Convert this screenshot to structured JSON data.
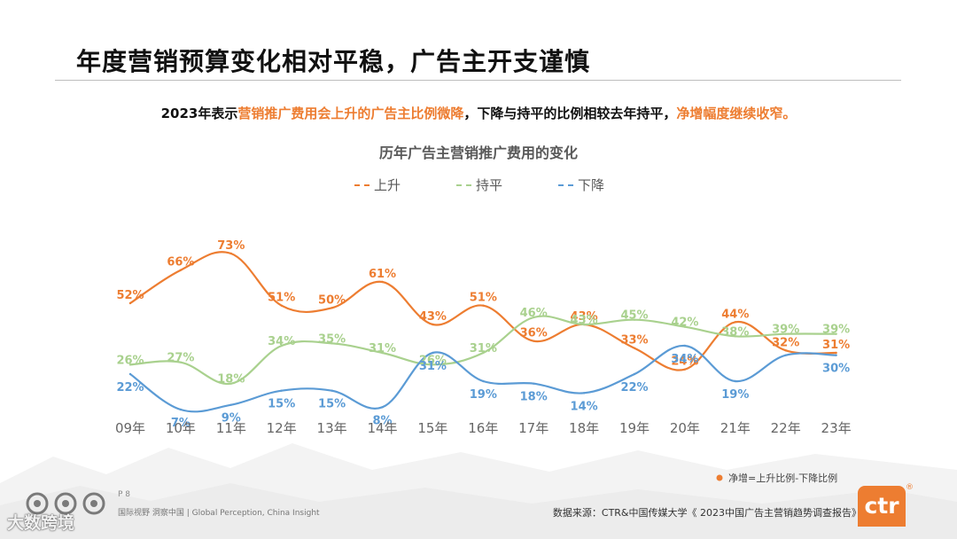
{
  "header": {
    "title": "年度营销预算变化相对平稳，广告主开支谨慎"
  },
  "subtitle": {
    "part1": "2023年表示",
    "highlight1": "营销推广费用会上升的广告主比例微降",
    "part2": "，下降与持平的比例相较去年持平，",
    "highlight2": "净增幅度继续收窄。"
  },
  "chart_data": {
    "type": "line",
    "title": "历年广告主营销推广费用的变化",
    "categories": [
      "09年",
      "10年",
      "11年",
      "12年",
      "13年",
      "14年",
      "15年",
      "16年",
      "17年",
      "18年",
      "19年",
      "20年",
      "21年",
      "22年",
      "23年"
    ],
    "series": [
      {
        "name": "上升",
        "color": "#ED7D31",
        "values": [
          52,
          66,
          73,
          51,
          50,
          61,
          43,
          51,
          36,
          43,
          33,
          24,
          44,
          32,
          31
        ]
      },
      {
        "name": "持平",
        "color": "#A9D18E",
        "values": [
          26,
          27,
          18,
          34,
          35,
          31,
          26,
          31,
          46,
          43,
          45,
          42,
          38,
          39,
          39
        ]
      },
      {
        "name": "下降",
        "color": "#5B9BD5",
        "values": [
          22,
          7,
          9,
          15,
          15,
          8,
          31,
          19,
          18,
          14,
          22,
          34,
          19,
          30,
          30
        ]
      }
    ],
    "value_labels": {
      "上升": [
        "52%",
        "66%",
        "73%",
        "51%",
        "50%",
        "61%",
        "43%",
        "51%",
        "36%",
        "43%",
        "33%",
        "24%",
        "44%",
        "32%",
        "31%"
      ],
      "持平": [
        "26%",
        "27%",
        "18%",
        "34%",
        "35%",
        "31%",
        "26%",
        "31%",
        "46%",
        "43%",
        "45%",
        "42%",
        "38%",
        "39%",
        "39%"
      ],
      "下降": [
        "22%",
        "7%",
        "9%",
        "15%",
        "15%",
        "8%",
        "31%",
        "19%",
        "18%",
        "14%",
        "22%",
        "34%",
        "19%",
        "",
        "30%"
      ]
    },
    "legend_position": "top-center",
    "ylim": [
      0,
      80
    ],
    "grid": false,
    "annotation": "净增=上升比例-下降比例"
  },
  "footer": {
    "page_number": "P 8",
    "slogan": "国际视野 洞察中国 | Global Perception, China Insight",
    "watermark": "大数跨境",
    "source": "数据来源：CTR&中国传媒大学《 2023中国广告主营销趋势调查报告》",
    "brand": "ctr",
    "brand_reg": "®"
  },
  "colors": {
    "accent": "#ED7D31",
    "up": "#ED7D31",
    "flat": "#A9D18E",
    "down": "#5B9BD5"
  }
}
